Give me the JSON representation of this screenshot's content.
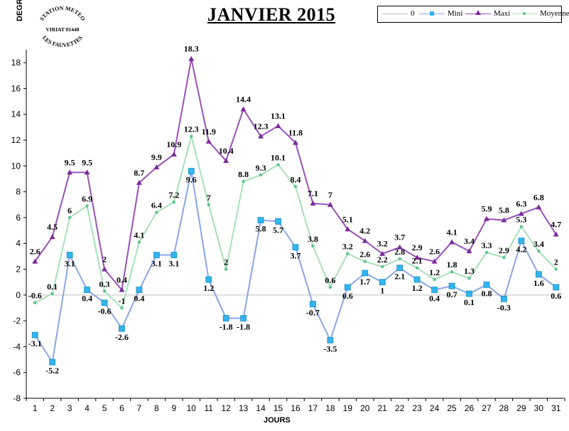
{
  "header": {
    "title": "JANVIER 2015",
    "ylabel": "DEGRES",
    "xlabel": "JOURS"
  },
  "logo": {
    "line1": "STATION METEO",
    "line2": "VIRIAT 01440",
    "line3": "LES FAUVETTES"
  },
  "legend": [
    "0",
    "Mini",
    "Maxi",
    "Moyenne"
  ],
  "chart_data": {
    "type": "line",
    "title": "JANVIER 2015",
    "xlabel": "JOURS",
    "ylabel": "DEGRES",
    "ylim": [
      -8,
      19
    ],
    "yticks": [
      -8,
      -6,
      -4,
      -2,
      0,
      2,
      4,
      6,
      8,
      10,
      12,
      14,
      16,
      18
    ],
    "x": [
      1,
      2,
      3,
      4,
      5,
      6,
      7,
      8,
      9,
      10,
      11,
      12,
      13,
      14,
      15,
      16,
      17,
      18,
      19,
      20,
      21,
      22,
      23,
      24,
      25,
      26,
      27,
      28,
      29,
      30,
      31
    ],
    "legend_position": "top-right",
    "series": [
      {
        "name": "0",
        "color": "#c0c0c0",
        "marker": "none",
        "labels": false,
        "values": [
          0,
          0,
          0,
          0,
          0,
          0,
          0,
          0,
          0,
          0,
          0,
          0,
          0,
          0,
          0,
          0,
          0,
          0,
          0,
          0,
          0,
          0,
          0,
          0,
          0,
          0,
          0,
          0,
          0,
          0,
          0
        ]
      },
      {
        "name": "Mini",
        "color": "#8aa6e8",
        "marker": "square",
        "marker_color": "#33b5ee",
        "values": [
          -3.1,
          -5.2,
          3.1,
          0.4,
          -0.6,
          -2.6,
          0.4,
          3.1,
          3.1,
          9.6,
          1.2,
          -1.8,
          -1.8,
          5.8,
          5.7,
          3.7,
          -0.7,
          -3.5,
          0.6,
          1.7,
          1,
          2.1,
          1.2,
          0.4,
          0.7,
          0.1,
          0.8,
          -0.3,
          4.2,
          1.6,
          0.6
        ],
        "labels": [
          "-3.1",
          "-5.2",
          "3.1",
          "0.4",
          "-0.6",
          "-2.6",
          "0.4",
          "3.1",
          "3.1",
          "9.6",
          "1.2",
          "-1.8",
          "-1.8",
          "5.8",
          "5.7",
          "3.7",
          "-0.7",
          "-3.5",
          "0.6",
          "1.7",
          "1",
          "2.1",
          "1.2",
          "0.4",
          "0.7",
          "0.1",
          "0.8",
          "-0.3",
          "4.2",
          "1.6",
          "0.6"
        ]
      },
      {
        "name": "Maxi",
        "color": "#9a52b8",
        "marker": "triangle",
        "marker_color": "#7a2a9a",
        "values": [
          2.6,
          4.5,
          9.5,
          9.5,
          2,
          0.4,
          8.7,
          9.9,
          10.9,
          18.3,
          11.9,
          10.4,
          14.4,
          12.3,
          13.1,
          11.8,
          7.1,
          7,
          5.1,
          4.2,
          3.2,
          3.7,
          2.9,
          2.6,
          4.1,
          3.4,
          5.9,
          5.8,
          6.3,
          6.8,
          4.7
        ],
        "labels": [
          "2.6",
          "4.5",
          "9.5",
          "9.5",
          "2",
          "0.4",
          "8.7",
          "9.9",
          "10.9",
          "18.3",
          "11.9",
          "10.4",
          "14.4",
          "12.3",
          "13.1",
          "11.8",
          "7.1",
          "7",
          "5.1",
          "4.2",
          "3.2",
          "3.7",
          "2.9",
          "2.6",
          "4.1",
          "3.4",
          "5.9",
          "5.8",
          "6.3",
          "6.8",
          "4.7"
        ]
      },
      {
        "name": "Moyenne",
        "color": "#a8e0b8",
        "marker": "dot",
        "marker_color": "#5cc48a",
        "values": [
          -0.6,
          0.1,
          6,
          6.9,
          0.3,
          -1,
          4.1,
          6.4,
          7.2,
          12.3,
          7,
          2,
          8.8,
          9.3,
          10.1,
          8.4,
          3.8,
          0.6,
          3.2,
          2.6,
          2.2,
          2.8,
          2.1,
          1.2,
          1.8,
          1.3,
          3.3,
          2.9,
          5.3,
          3.4,
          2
        ],
        "labels": [
          "-0.6",
          "0.1",
          "6",
          "6.9",
          "0.3",
          "-1",
          "4.1",
          "6.4",
          "7.2",
          "12.3",
          "7",
          "2",
          "8.8",
          "9.3",
          "10.1",
          "8.4",
          "3.8",
          "0.6",
          "3.2",
          "2.6",
          "2.2",
          "2.8",
          "2.1",
          "1.2",
          "1.8",
          "1.3",
          "3.3",
          "2.9",
          "5.3",
          "3.4",
          "2"
        ]
      }
    ]
  }
}
